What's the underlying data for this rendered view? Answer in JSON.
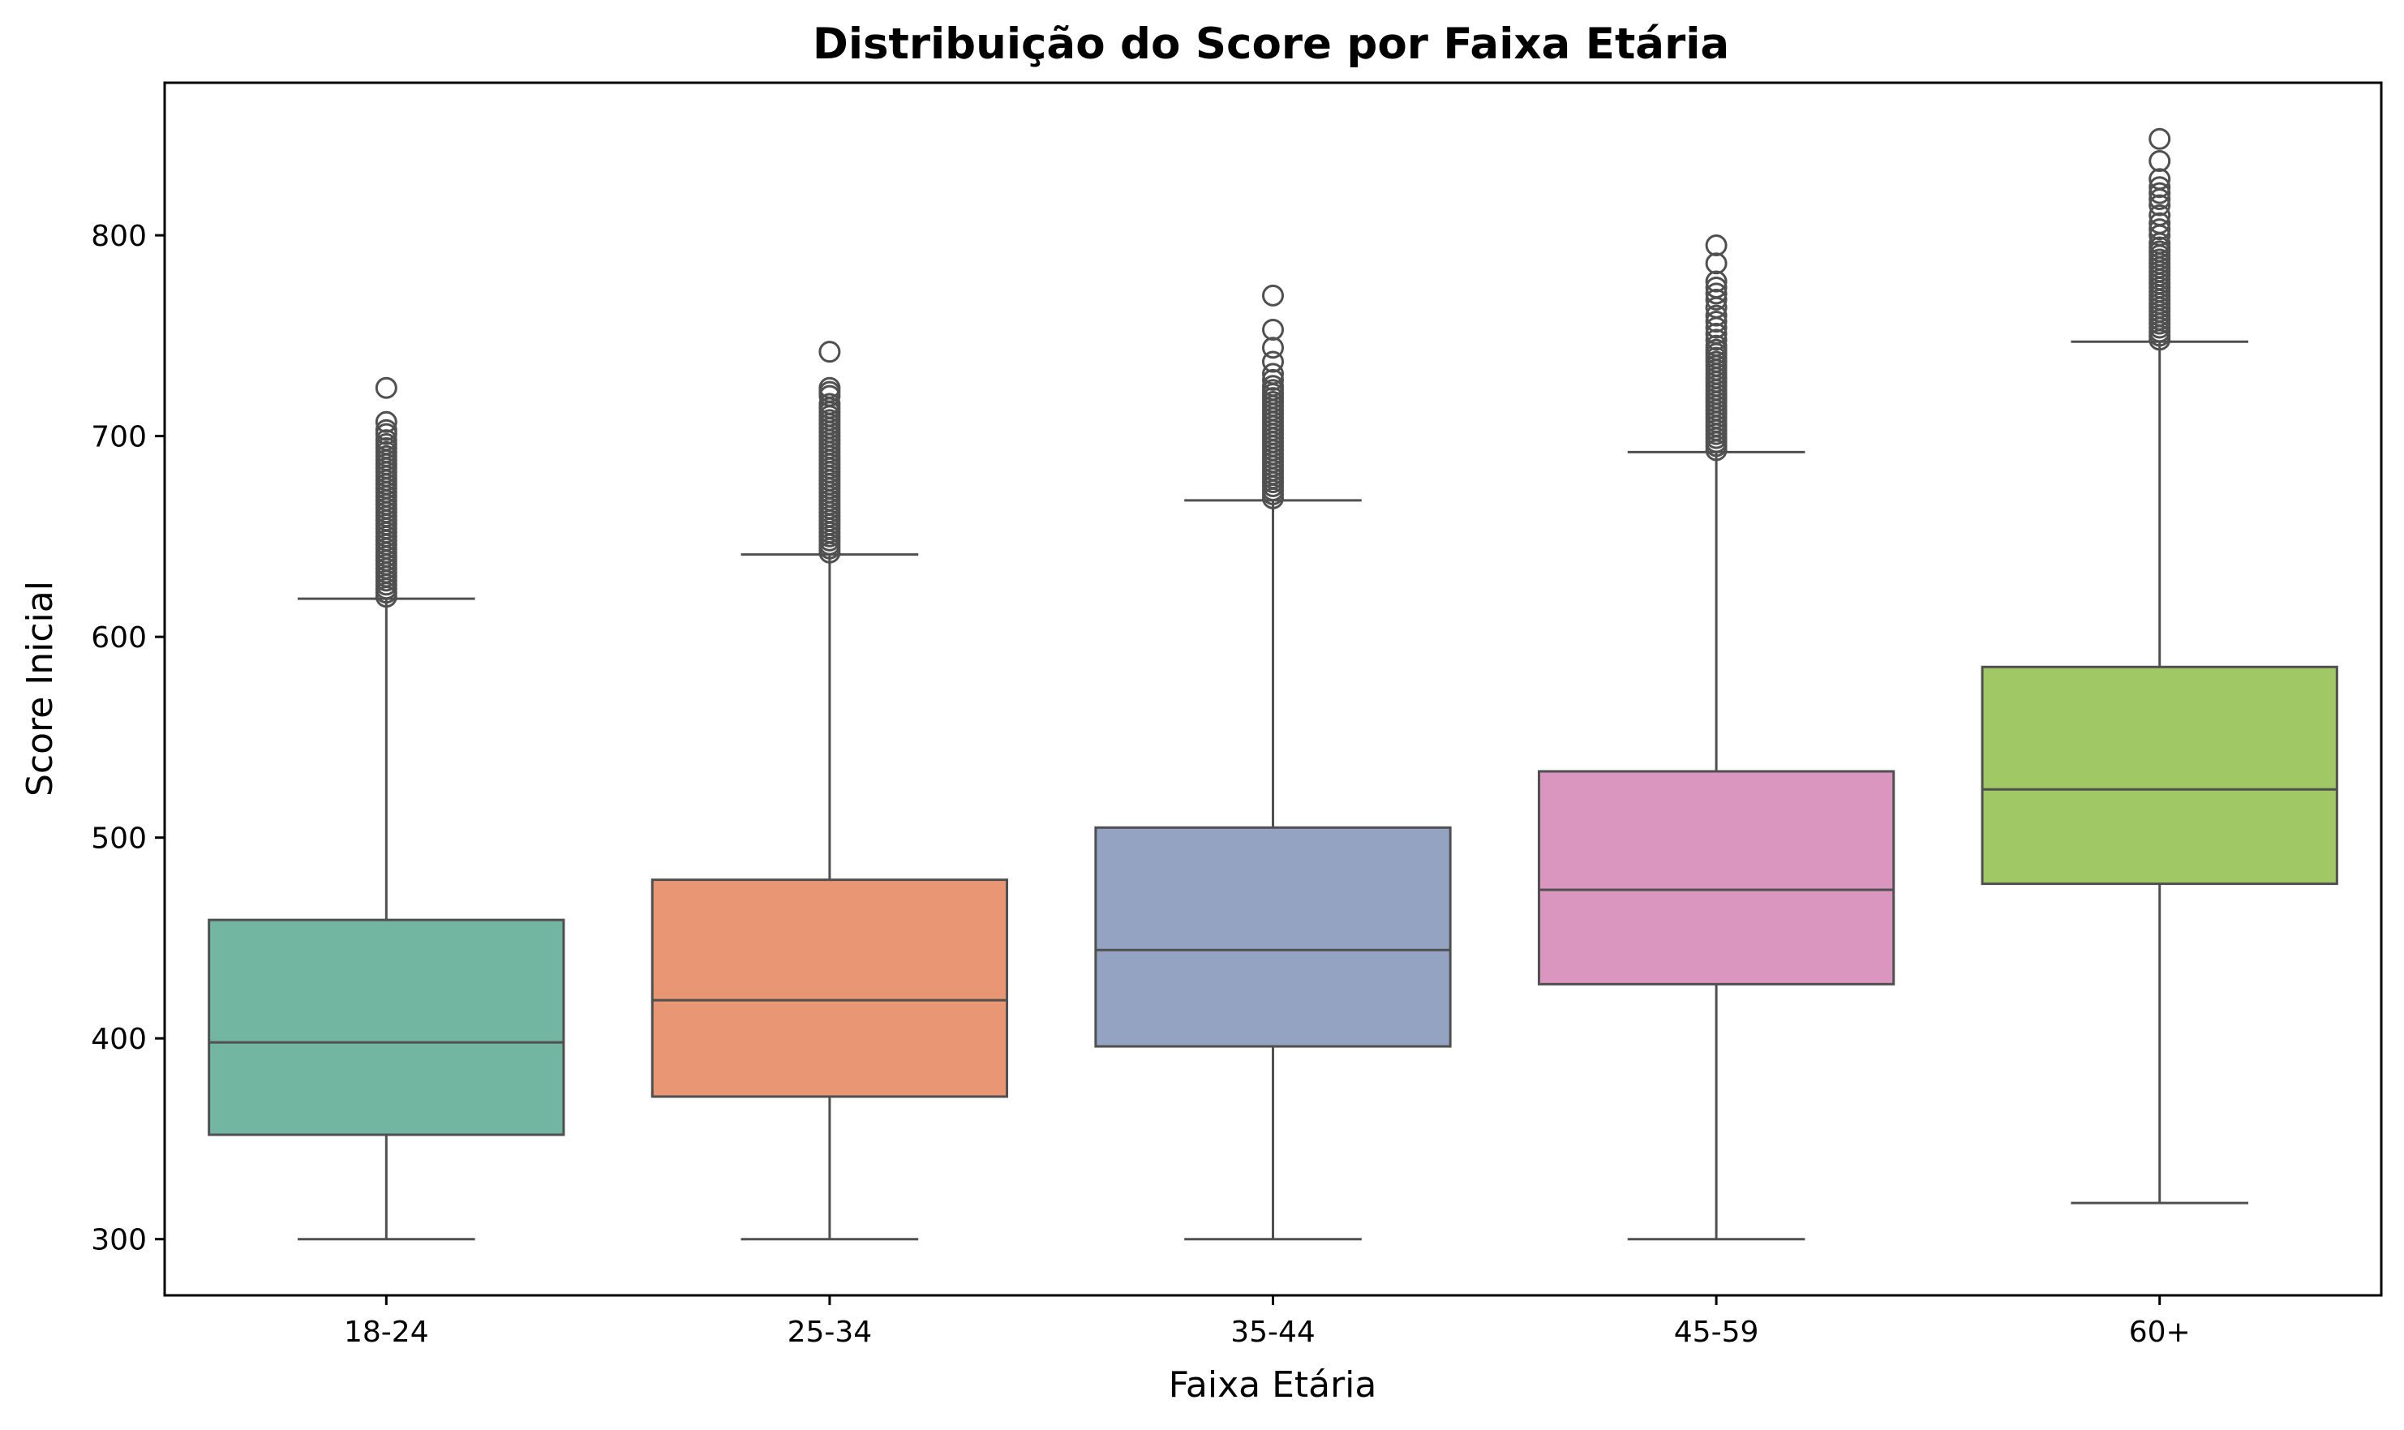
{
  "chart_data": {
    "type": "box",
    "title": "Distribuição do Score por Faixa Etária",
    "xlabel": "Faixa Etária",
    "ylabel": "Score Inicial",
    "ylim": [
      272,
      876
    ],
    "yticks": [
      300,
      400,
      500,
      600,
      700,
      800
    ],
    "grid": false,
    "legend": "none",
    "categories": [
      "18-24",
      "25-34",
      "35-44",
      "45-59",
      "60+"
    ],
    "box_stroke_color": "#505050",
    "boxes": [
      {
        "category": "18-24",
        "color": "#72B6A1",
        "whisker_low": 300,
        "q1": 352,
        "median": 398,
        "q3": 459,
        "whisker_high": 619,
        "outliers": [
          620,
          622,
          624,
          626,
          628,
          630,
          632,
          634,
          636,
          638,
          640,
          642,
          644,
          646,
          648,
          650,
          652,
          654,
          656,
          658,
          660,
          662,
          664,
          666,
          668,
          670,
          672,
          674,
          676,
          678,
          680,
          682,
          684,
          686,
          688,
          690,
          692,
          694,
          696,
          698,
          701,
          703,
          707,
          724
        ]
      },
      {
        "category": "25-34",
        "color": "#E99675",
        "whisker_low": 300,
        "q1": 371,
        "median": 419,
        "q3": 479,
        "whisker_high": 641,
        "outliers": [
          642,
          644,
          646,
          648,
          650,
          652,
          654,
          656,
          658,
          660,
          662,
          664,
          666,
          668,
          670,
          672,
          674,
          676,
          678,
          680,
          682,
          684,
          686,
          688,
          690,
          692,
          694,
          696,
          698,
          700,
          702,
          704,
          706,
          708,
          710,
          712,
          714,
          716,
          720,
          722,
          724,
          742
        ]
      },
      {
        "category": "35-44",
        "color": "#95A3C3",
        "whisker_low": 300,
        "q1": 396,
        "median": 444,
        "q3": 505,
        "whisker_high": 668,
        "outliers": [
          669,
          671,
          673,
          675,
          677,
          679,
          681,
          683,
          685,
          687,
          689,
          691,
          693,
          695,
          697,
          699,
          701,
          703,
          705,
          707,
          709,
          711,
          713,
          715,
          717,
          719,
          721,
          723,
          725,
          728,
          731,
          737,
          744,
          753,
          770
        ]
      },
      {
        "category": "45-59",
        "color": "#DB96C0",
        "whisker_low": 300,
        "q1": 427,
        "median": 474,
        "q3": 533,
        "whisker_high": 692,
        "outliers": [
          693,
          695,
          697,
          699,
          701,
          703,
          705,
          707,
          709,
          711,
          713,
          715,
          717,
          719,
          721,
          723,
          725,
          727,
          729,
          731,
          733,
          735,
          737,
          739,
          741,
          743,
          745,
          748,
          751,
          754,
          757,
          760,
          764,
          768,
          771,
          774,
          777,
          786,
          795
        ]
      },
      {
        "category": "60+",
        "color": "#A0C864",
        "whisker_low": 318,
        "q1": 477,
        "median": 524,
        "q3": 585,
        "whisker_high": 747,
        "outliers": [
          748,
          750,
          752,
          754,
          756,
          758,
          760,
          762,
          764,
          766,
          768,
          770,
          772,
          774,
          776,
          778,
          780,
          782,
          784,
          786,
          788,
          790,
          792,
          794,
          796,
          800,
          803,
          806,
          810,
          815,
          818,
          821,
          824,
          828,
          837,
          848
        ]
      }
    ]
  }
}
